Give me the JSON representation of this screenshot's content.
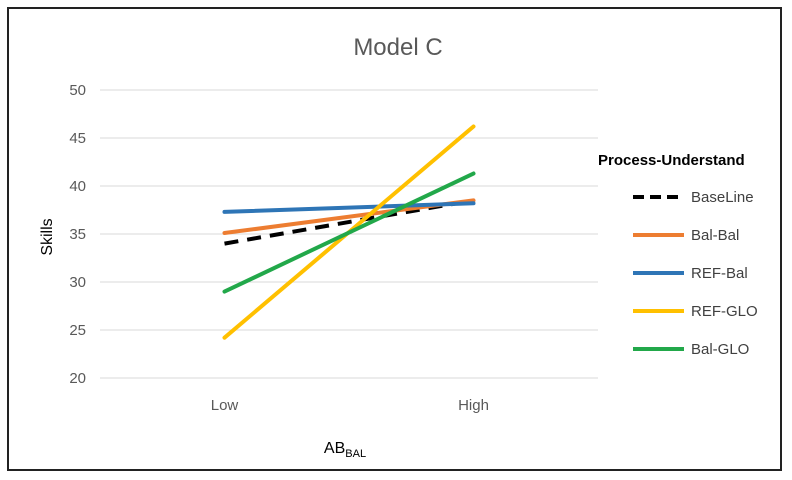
{
  "chart_data": {
    "type": "line",
    "title": "Model C",
    "xlabel": {
      "main": "AB",
      "subscript": "BAL"
    },
    "ylabel": "Skills",
    "categories": [
      "Low",
      "High"
    ],
    "ylim": [
      20,
      50
    ],
    "yticks": [
      20,
      25,
      30,
      35,
      40,
      45,
      50
    ],
    "grid": true,
    "legend_title": "Process-Understand",
    "legend_position": "right",
    "series": [
      {
        "name": "BaseLine",
        "values": [
          34.0,
          38.5
        ],
        "color": "#000000",
        "dashed": true
      },
      {
        "name": "Bal-Bal",
        "values": [
          35.1,
          38.5
        ],
        "color": "#ED7D31",
        "dashed": false
      },
      {
        "name": "REF-Bal",
        "values": [
          37.3,
          38.2
        ],
        "color": "#2E75B6",
        "dashed": false
      },
      {
        "name": "REF-GLO",
        "values": [
          24.2,
          46.2
        ],
        "color": "#FFC000",
        "dashed": false
      },
      {
        "name": "Bal-GLO",
        "values": [
          29.0,
          41.3
        ],
        "color": "#22A84A",
        "dashed": false
      }
    ]
  }
}
